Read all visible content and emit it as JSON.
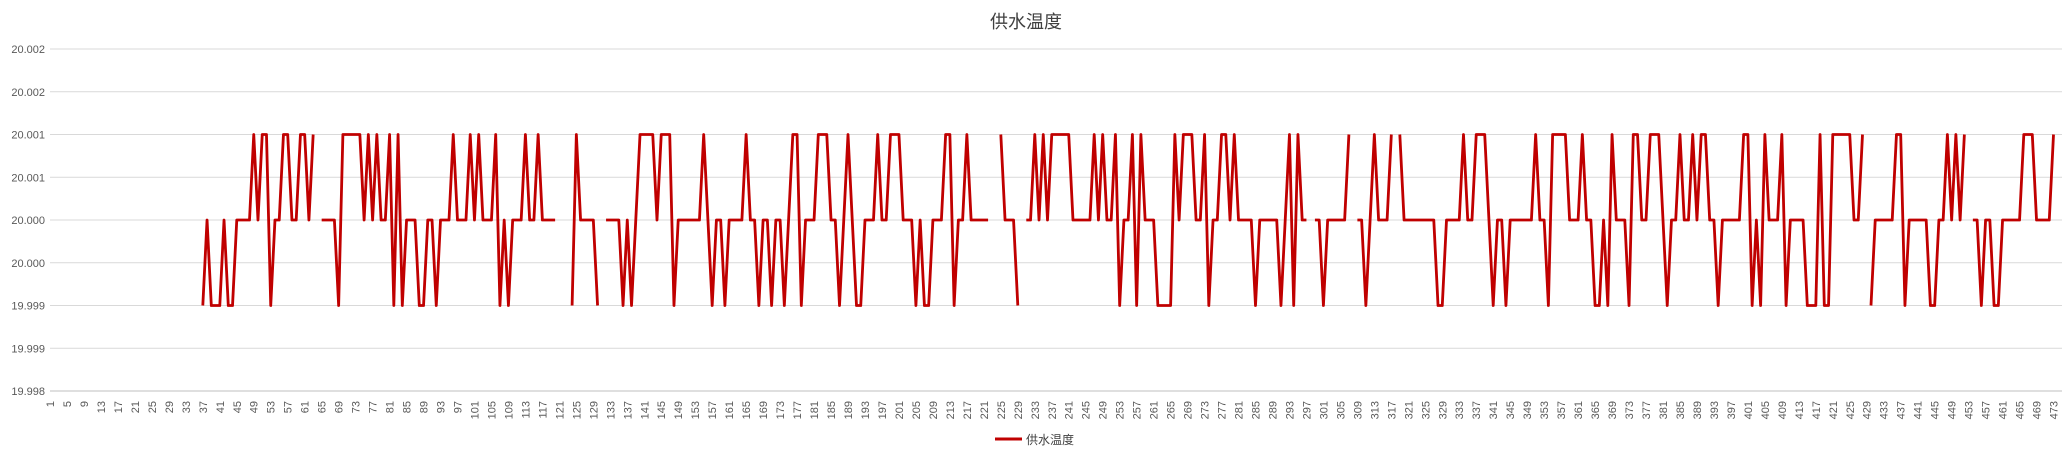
{
  "chart_data": {
    "type": "line",
    "title": "供水温度",
    "xlabel": "",
    "ylabel": "",
    "y_tick_labels": [
      "20.002",
      "20.002",
      "20.001",
      "20.001",
      "20.000",
      "20.000",
      "19.999",
      "19.999",
      "19.998"
    ],
    "ylim": [
      19.998,
      20.002
    ],
    "x_range": [
      1,
      475
    ],
    "x_tick_step": 4,
    "grid": true,
    "legend": "bottom-center",
    "series": [
      {
        "name": "供水温度",
        "color": "#C00000",
        "start_x": 37,
        "values": [
          19.999,
          20.0,
          19.999,
          19.999,
          19.999,
          20.0,
          19.999,
          19.999,
          20.0,
          20.0,
          20.0,
          20.0,
          20.001,
          20.0,
          20.001,
          20.001,
          19.999,
          20.0,
          20.0,
          20.001,
          20.001,
          20.0,
          20.0,
          20.001,
          20.001,
          20.0,
          20.001,
          null,
          20.0,
          20.0,
          20.0,
          20.0,
          19.999,
          20.001,
          20.001,
          20.001,
          20.001,
          20.001,
          20.0,
          20.001,
          20.0,
          20.001,
          20.0,
          20.0,
          20.001,
          19.999,
          20.001,
          19.999,
          20.0,
          20.0,
          20.0,
          19.999,
          19.999,
          20.0,
          20.0,
          19.999,
          20.0,
          20.0,
          20.0,
          20.001,
          20.0,
          20.0,
          20.0,
          20.001,
          20.0,
          20.001,
          20.0,
          20.0,
          20.0,
          20.001,
          19.999,
          20.0,
          19.999,
          20.0,
          20.0,
          20.0,
          20.001,
          20.0,
          20.0,
          20.001,
          20.0,
          20.0,
          20.0,
          20.0,
          null,
          null,
          null,
          19.999,
          20.001,
          20.0,
          20.0,
          20.0,
          20.0,
          19.999,
          null,
          20.0,
          20.0,
          20.0,
          20.0,
          19.999,
          20.0,
          19.999,
          20.0,
          20.001,
          20.001,
          20.001,
          20.001,
          20.0,
          20.001,
          20.001,
          20.001,
          19.999,
          20.0,
          20.0,
          20.0,
          20.0,
          20.0,
          20.0,
          20.001,
          20.0,
          19.999,
          20.0,
          20.0,
          19.999,
          20.0,
          20.0,
          20.0,
          20.0,
          20.001,
          20.0,
          20.0,
          19.999,
          20.0,
          20.0,
          19.999,
          20.0,
          20.0,
          19.999,
          20.0,
          20.001,
          20.001,
          19.999,
          20.0,
          20.0,
          20.0,
          20.001,
          20.001,
          20.001,
          20.0,
          20.0,
          19.999,
          20.0,
          20.001,
          20.0,
          19.999,
          19.999,
          20.0,
          20.0,
          20.0,
          20.001,
          20.0,
          20.0,
          20.001,
          20.001,
          20.001,
          20.0,
          20.0,
          20.0,
          19.999,
          20.0,
          19.999,
          19.999,
          20.0,
          20.0,
          20.0,
          20.001,
          20.001,
          19.999,
          20.0,
          20.0,
          20.001,
          20.0,
          20.0,
          20.0,
          20.0,
          20.0,
          null,
          null,
          20.001,
          20.0,
          20.0,
          20.0,
          19.999,
          null,
          20.0,
          20.0,
          20.001,
          20.0,
          20.001,
          20.0,
          20.001,
          20.001,
          20.001,
          20.001,
          20.001,
          20.0,
          20.0,
          20.0,
          20.0,
          20.0,
          20.001,
          20.0,
          20.001,
          20.0,
          20.0,
          20.001,
          19.999,
          20.0,
          20.0,
          20.001,
          19.999,
          20.001,
          20.0,
          20.0,
          20.0,
          19.999,
          19.999,
          19.999,
          19.999,
          20.001,
          20.0,
          20.001,
          20.001,
          20.001,
          20.0,
          20.0,
          20.001,
          19.999,
          20.0,
          20.0,
          20.001,
          20.001,
          20.0,
          20.001,
          20.0,
          20.0,
          20.0,
          20.0,
          19.999,
          20.0,
          20.0,
          20.0,
          20.0,
          20.0,
          19.999,
          20.0,
          20.001,
          19.999,
          20.001,
          20.0,
          20.0,
          null,
          20.0,
          20.0,
          19.999,
          20.0,
          20.0,
          20.0,
          20.0,
          20.0,
          20.001,
          null,
          20.0,
          20.0,
          19.999,
          20.0,
          20.001,
          20.0,
          20.0,
          20.0,
          20.001,
          null,
          20.001,
          20.0,
          20.0,
          20.0,
          20.0,
          20.0,
          20.0,
          20.0,
          20.0,
          19.999,
          19.999,
          20.0,
          20.0,
          20.0,
          20.0,
          20.001,
          20.0,
          20.0,
          20.001,
          20.001,
          20.001,
          20.0,
          19.999,
          20.0,
          20.0,
          19.999,
          20.0,
          20.0,
          20.0,
          20.0,
          20.0,
          20.0,
          20.001,
          20.0,
          20.0,
          19.999,
          20.001,
          20.001,
          20.001,
          20.001,
          20.0,
          20.0,
          20.0,
          20.001,
          20.0,
          20.0,
          19.999,
          19.999,
          20.0,
          19.999,
          20.001,
          20.0,
          20.0,
          20.0,
          19.999,
          20.001,
          20.001,
          20.0,
          20.0,
          20.001,
          20.001,
          20.001,
          20.0,
          19.999,
          20.0,
          20.0,
          20.001,
          20.0,
          20.0,
          20.001,
          20.0,
          20.001,
          20.001,
          20.0,
          20.0,
          19.999,
          20.0,
          20.0,
          20.0,
          20.0,
          20.0,
          20.001,
          20.001,
          19.999,
          20.0,
          19.999,
          20.001,
          20.0,
          20.0,
          20.0,
          20.001,
          19.999,
          20.0,
          20.0,
          20.0,
          20.0,
          19.999,
          19.999,
          19.999,
          20.001,
          19.999,
          19.999,
          20.001,
          20.001,
          20.001,
          20.001,
          20.001,
          20.0,
          20.0,
          20.001,
          null,
          19.999,
          20.0,
          20.0,
          20.0,
          20.0,
          20.0,
          20.001,
          20.001,
          19.999,
          20.0,
          20.0,
          20.0,
          20.0,
          20.0,
          19.999,
          19.999,
          20.0,
          20.0,
          20.001,
          20.0,
          20.001,
          20.0,
          20.001,
          null,
          20.0,
          20.0,
          19.999,
          20.0,
          20.0,
          19.999,
          19.999,
          20.0,
          20.0,
          20.0,
          20.0,
          20.0,
          20.001,
          20.001,
          20.001,
          20.0,
          20.0,
          20.0,
          20.0,
          20.001
        ]
      }
    ]
  }
}
